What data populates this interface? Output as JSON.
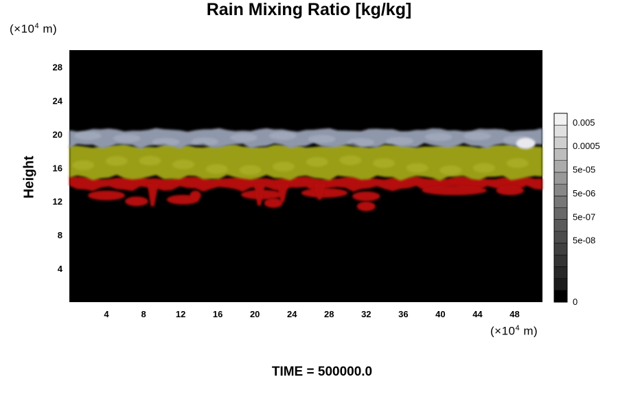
{
  "chart_data": {
    "type": "heatmap",
    "title": "Rain Mixing Ratio [kg/kg]",
    "ylabel": "Height",
    "x_unit": {
      "prefix": "(×10",
      "exp": "4",
      "suffix": " m)"
    },
    "y_unit": {
      "prefix": "(×10",
      "exp": "4",
      "suffix": " m)"
    },
    "x_ticks": [
      4,
      8,
      12,
      16,
      20,
      24,
      28,
      32,
      36,
      40,
      44,
      48
    ],
    "y_ticks": [
      4,
      8,
      12,
      16,
      20,
      24,
      28
    ],
    "xlim": [
      0,
      51
    ],
    "ylim": [
      0,
      30
    ],
    "bands": [
      {
        "name": "light",
        "y_bottom": 18.6,
        "y_top": 20.5,
        "value": "0.005"
      },
      {
        "name": "yellow",
        "y_bottom": 14.8,
        "y_top": 18.6,
        "value": "0.0005"
      },
      {
        "name": "red",
        "y_bottom": 13.5,
        "y_top": 14.8,
        "value": "5e-05"
      }
    ],
    "red_patches": [
      {
        "x": 2,
        "y": 12.7,
        "w": 4.0
      },
      {
        "x": 6,
        "y": 12.0,
        "w": 2.5
      },
      {
        "x": 10.5,
        "y": 12.2,
        "w": 3.5
      },
      {
        "x": 13,
        "y": 12.7,
        "w": 1.2
      },
      {
        "x": 18.5,
        "y": 12.8,
        "w": 4.5
      },
      {
        "x": 21,
        "y": 11.8,
        "w": 2.0
      },
      {
        "x": 25,
        "y": 13.0,
        "w": 5.0
      },
      {
        "x": 30.5,
        "y": 12.6,
        "w": 3.0
      },
      {
        "x": 31,
        "y": 11.4,
        "w": 2.0
      },
      {
        "x": 38,
        "y": 13.3,
        "w": 7.0
      },
      {
        "x": 46,
        "y": 13.3,
        "w": 3.0
      }
    ],
    "colorbar": {
      "labels": [
        "0.005",
        "0.0005",
        "5e-05",
        "5e-06",
        "5e-07",
        "5e-08",
        "0"
      ],
      "colors": [
        "#f2f2f2",
        "#e0e0e0",
        "#cfcfcf",
        "#bdbdbd",
        "#ababab",
        "#999999",
        "#878787",
        "#777777",
        "#686868",
        "#5a5a5a",
        "#4c4c4c",
        "#404040",
        "#343434",
        "#282828",
        "#1c1c1c",
        "#000000"
      ]
    },
    "colors": {
      "background": "#000000",
      "light_band": "#8f97aa",
      "yellow_band": "#9a9e14",
      "red_band": "#b40f0f"
    }
  },
  "time_label": "TIME = 500000.0"
}
